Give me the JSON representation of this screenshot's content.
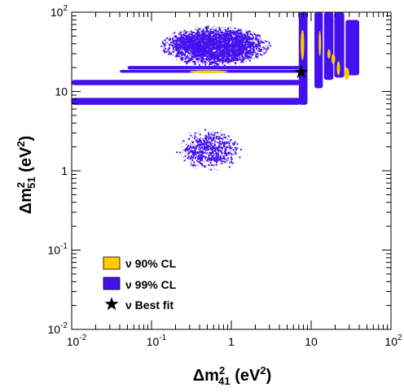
{
  "chart_data": {
    "type": "scatter",
    "title": "",
    "xlabel": {
      "main": "Δm",
      "sup": "2",
      "sub": "41",
      "unit_open": " (eV",
      "unit_sup": "2",
      "unit_close": ")"
    },
    "ylabel": {
      "main": "Δm",
      "sup": "2",
      "sub": "51",
      "unit_open": " (eV",
      "unit_sup": "2",
      "unit_close": ")"
    },
    "x_scale": "log",
    "y_scale": "log",
    "xlim": [
      0.01,
      100
    ],
    "ylim": [
      0.01,
      100
    ],
    "x_ticks": [
      {
        "value": 0.01,
        "base": "10",
        "exp": "-2"
      },
      {
        "value": 0.1,
        "base": "10",
        "exp": "-1"
      },
      {
        "value": 1,
        "base": "1",
        "exp": ""
      },
      {
        "value": 10,
        "base": "10",
        "exp": ""
      },
      {
        "value": 100,
        "base": "10",
        "exp": "2"
      }
    ],
    "y_ticks": [
      {
        "value": 0.01,
        "base": "10",
        "exp": "-2"
      },
      {
        "value": 0.1,
        "base": "10",
        "exp": "-1"
      },
      {
        "value": 1,
        "base": "1",
        "exp": ""
      },
      {
        "value": 10,
        "base": "10",
        "exp": ""
      },
      {
        "value": 100,
        "base": "10",
        "exp": "2"
      }
    ],
    "grid": false,
    "legend_position": "bottom-left",
    "colors": {
      "cl90": "#ffcc00",
      "cl99": "#4411ee",
      "bestfit": "#000000",
      "frame": "#000000"
    },
    "series": [
      {
        "name": "ν 90% CL",
        "kind": "region",
        "color": "#ffcc00",
        "blobs": [
          {
            "x": [
              7.4,
              8.2
            ],
            "y": [
              25,
              60
            ]
          },
          {
            "x": [
              12.5,
              13.2
            ],
            "y": [
              28,
              58
            ]
          },
          {
            "x": [
              16,
              17.5
            ],
            "y": [
              26,
              34
            ]
          },
          {
            "x": [
              18,
              20
            ],
            "y": [
              22,
              30
            ]
          },
          {
            "x": [
              21,
              23
            ],
            "y": [
              16,
              24
            ]
          },
          {
            "x": [
              26,
              30
            ],
            "y": [
              14,
              20
            ]
          },
          {
            "x": [
              0.3,
              0.9
            ],
            "y": [
              17,
              18.5
            ]
          }
        ]
      },
      {
        "name": "ν 99% CL",
        "kind": "region",
        "color": "#4411ee",
        "bands": [
          {
            "x": [
              0.01,
              7.3
            ],
            "y": [
              6.8,
              8.3
            ]
          },
          {
            "x": [
              0.01,
              7.3
            ],
            "y": [
              12.0,
              14.0
            ]
          },
          {
            "x": [
              0.04,
              7.3
            ],
            "y": [
              17.2,
              18.7
            ]
          },
          {
            "x": [
              0.05,
              7.3
            ],
            "y": [
              19.0,
              21.0
            ]
          },
          {
            "x": [
              7.0,
              9.0
            ],
            "y": [
              6.8,
              100
            ]
          },
          {
            "x": [
              11.0,
              14.0
            ],
            "y": [
              11,
              100
            ]
          },
          {
            "x": [
              14.5,
              19.0
            ],
            "y": [
              14,
              100
            ]
          },
          {
            "x": [
              19.5,
              26.0
            ],
            "y": [
              15,
              100
            ]
          },
          {
            "x": [
              27.0,
              40.0
            ],
            "y": [
              16,
              80
            ]
          }
        ],
        "blobs": [
          {
            "x": [
              0.12,
              3.2
            ],
            "y": [
              21,
              70
            ],
            "density": 0.65
          },
          {
            "x": [
              0.2,
              1.4
            ],
            "y": [
              1.0,
              3.5
            ],
            "density": 0.22
          }
        ]
      },
      {
        "name": "ν Best fit",
        "kind": "marker",
        "color": "#000000",
        "points": [
          {
            "x": 7.5,
            "y": 17.5
          }
        ]
      }
    ],
    "legend": [
      {
        "label": "ν 90% CL",
        "swatch": "#ffcc00"
      },
      {
        "label": "ν 99% CL",
        "swatch": "#4411ee"
      },
      {
        "label": "ν Best fit",
        "swatch": "star"
      }
    ]
  }
}
